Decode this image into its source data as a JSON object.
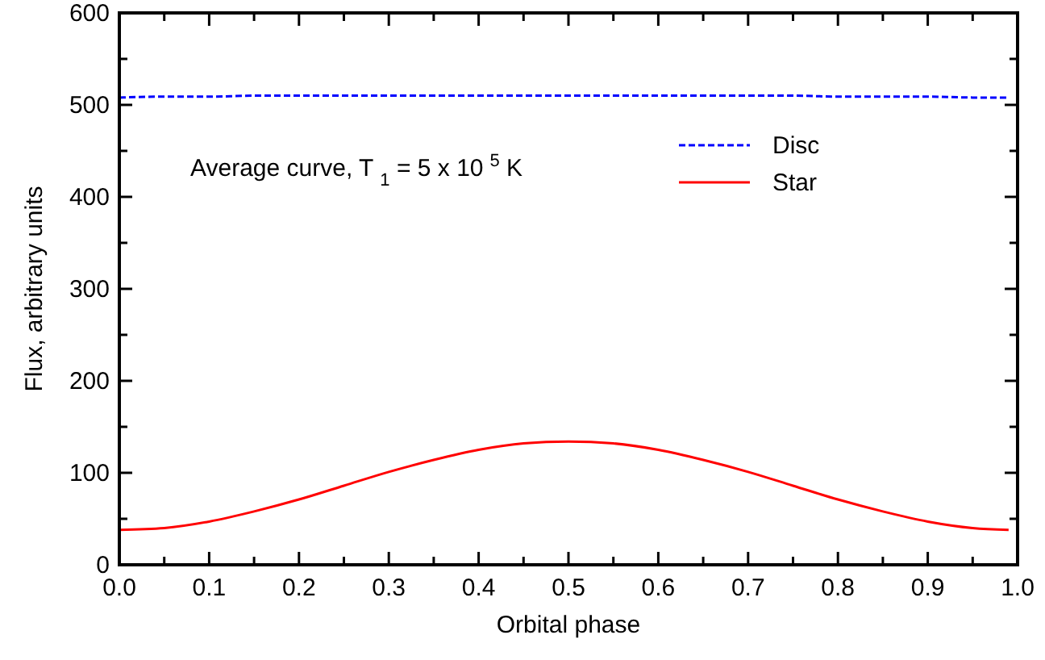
{
  "chart_data": {
    "type": "line",
    "xlabel": "Orbital phase",
    "ylabel": "Flux, arbitrary units",
    "annotations": [
      "Average curve, T$_{1}$ = 5 x 10$^{5}$ K"
    ],
    "x": [
      0,
      0.05,
      0.1,
      0.15,
      0.2,
      0.25,
      0.3,
      0.35,
      0.4,
      0.45,
      0.5,
      0.55,
      0.6,
      0.65,
      0.7,
      0.75,
      0.8,
      0.85,
      0.9,
      0.95,
      0.99
    ],
    "series": [
      {
        "name": "Disc",
        "color": "#0000ff",
        "line_style": "dashed",
        "values": [
          508,
          509,
          509,
          510,
          510,
          510,
          510,
          510,
          510,
          510,
          510,
          510,
          510,
          510,
          510,
          510,
          509,
          509,
          509,
          508,
          508
        ]
      },
      {
        "name": "Star",
        "color": "#ff0000",
        "line_style": "solid",
        "values": [
          38,
          40,
          47,
          58,
          71,
          86,
          101,
          114,
          125,
          132,
          134,
          132,
          125,
          114,
          101,
          86,
          71,
          58,
          47,
          40,
          38
        ]
      }
    ],
    "xlim": [
      0,
      1
    ],
    "ylim": [
      0,
      600
    ],
    "xticks": [
      {
        "value": 0,
        "label": "0.0"
      },
      {
        "value": 0.05,
        "label": null
      },
      {
        "value": 0.1,
        "label": "0.1"
      },
      {
        "value": 0.15,
        "label": null
      },
      {
        "value": 0.2,
        "label": "0.2"
      },
      {
        "value": 0.25,
        "label": null
      },
      {
        "value": 0.3,
        "label": "0.3"
      },
      {
        "value": 0.35,
        "label": null
      },
      {
        "value": 0.4,
        "label": "0.4"
      },
      {
        "value": 0.45,
        "label": null
      },
      {
        "value": 0.5,
        "label": "0.5"
      },
      {
        "value": 0.55,
        "label": null
      },
      {
        "value": 0.6,
        "label": "0.6"
      },
      {
        "value": 0.65,
        "label": null
      },
      {
        "value": 0.7,
        "label": "0.7"
      },
      {
        "value": 0.75,
        "label": null
      },
      {
        "value": 0.8,
        "label": "0.8"
      },
      {
        "value": 0.85,
        "label": null
      },
      {
        "value": 0.9,
        "label": "0.9"
      },
      {
        "value": 0.95,
        "label": null
      },
      {
        "value": 1,
        "label": "1.0"
      }
    ],
    "yticks": [
      0,
      {
        "value": 50,
        "label": null
      },
      100,
      {
        "value": 150,
        "label": null
      },
      200,
      {
        "value": 250,
        "label": null
      },
      300,
      {
        "value": 350,
        "label": null
      },
      400,
      {
        "value": 450,
        "label": null
      },
      500,
      {
        "value": 550,
        "label": null
      },
      600
    ],
    "grid": false,
    "legend": "top right"
  }
}
